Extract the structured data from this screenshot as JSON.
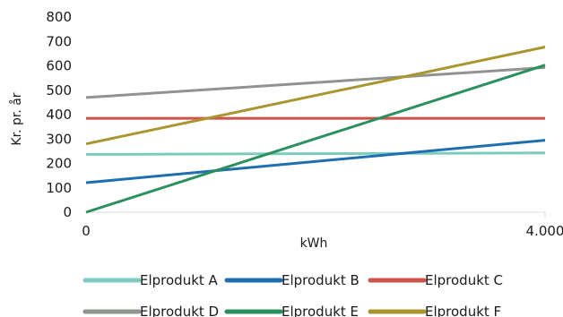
{
  "chart_data": {
    "type": "line",
    "title": "",
    "xlabel": "kWh",
    "ylabel": "Kr. pr. år",
    "x_ticks": [
      "0",
      "4.000"
    ],
    "y_ticks": [
      "0",
      "100",
      "200",
      "300",
      "400",
      "500",
      "600",
      "700",
      "800"
    ],
    "xlim": [
      0,
      4000
    ],
    "ylim": [
      0,
      800
    ],
    "grid": false,
    "legend_position": "bottom",
    "x": [
      0,
      4000
    ],
    "series": [
      {
        "name": "Elprodukt A",
        "color": "#7dcbbf",
        "values": [
          237,
          243
        ]
      },
      {
        "name": "Elprodukt B",
        "color": "#1f6fb0",
        "values": [
          121,
          295
        ]
      },
      {
        "name": "Elprodukt C",
        "color": "#cc524b",
        "values": [
          385,
          385
        ]
      },
      {
        "name": "Elprodukt D",
        "color": "#8f948f",
        "values": [
          470,
          593
        ]
      },
      {
        "name": "Elprodukt E",
        "color": "#2b8f5e",
        "values": [
          0,
          603
        ]
      },
      {
        "name": "Elprodukt F",
        "color": "#a9962f",
        "values": [
          280,
          677
        ]
      }
    ]
  }
}
